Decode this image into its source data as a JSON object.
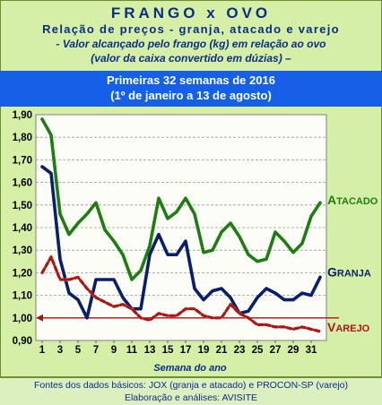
{
  "header": {
    "title": "FRANGO x OVO",
    "subtitle": "Relação de preços - granja, atacado e varejo",
    "note_line1": "- Valor alcançado pelo frango (kg) em relação ao ovo",
    "note_line2": "(valor da caixa convertido em dúzias) –"
  },
  "banner": {
    "line1": "Primeiras  32 semanas de 2016",
    "line2": "(1º de janeiro a 13 de agosto)"
  },
  "footer": {
    "line1": "Fontes dos dados básicos: JOX (granja e atacado) e PROCON-SP (varejo)",
    "line2": "Elaboração e análises: AVISITE"
  },
  "colors": {
    "plot_bg": "#fdfdf7",
    "grid": "#9a9a9a",
    "atacado": "#1e7d12",
    "granja": "#0a1f6b",
    "varejo": "#b01515",
    "reference": "#a01818",
    "label_text": "#0b2d86"
  },
  "chart_data": {
    "type": "line",
    "xlabel": "Semana  do ano",
    "ylabel": "",
    "ylim": [
      0.9,
      1.9
    ],
    "yticks": [
      "0,90",
      "1,00",
      "1,10",
      "1,20",
      "1,30",
      "1,40",
      "1,50",
      "1,60",
      "1,70",
      "1,80",
      "1,90"
    ],
    "ytick_values": [
      0.9,
      1.0,
      1.1,
      1.2,
      1.3,
      1.4,
      1.5,
      1.6,
      1.7,
      1.8,
      1.9
    ],
    "xticks": [
      "1",
      "3",
      "5",
      "7",
      "9",
      "11",
      "13",
      "15",
      "17",
      "19",
      "21",
      "23",
      "25",
      "27",
      "29",
      "31"
    ],
    "xlim": [
      1,
      32
    ],
    "reference_line": 1.0,
    "grid": true,
    "x": [
      1,
      2,
      3,
      4,
      5,
      6,
      7,
      8,
      9,
      10,
      11,
      12,
      13,
      14,
      15,
      16,
      17,
      18,
      19,
      20,
      21,
      22,
      23,
      24,
      25,
      26,
      27,
      28,
      29,
      30,
      31,
      32
    ],
    "series": [
      {
        "name": "Atacado",
        "key": "atacado",
        "label_display": "ATACADO",
        "style": "solid",
        "values": [
          1.88,
          1.81,
          1.46,
          1.37,
          1.42,
          1.46,
          1.51,
          1.39,
          1.34,
          1.28,
          1.17,
          1.21,
          1.32,
          1.53,
          1.44,
          1.47,
          1.53,
          1.46,
          1.29,
          1.3,
          1.38,
          1.42,
          1.36,
          1.28,
          1.25,
          1.26,
          1.38,
          1.34,
          1.29,
          1.33,
          1.45,
          1.51
        ]
      },
      {
        "name": "Granja",
        "key": "granja",
        "label_display": "GRANJA",
        "style": "solid",
        "values": [
          1.67,
          1.64,
          1.26,
          1.11,
          1.08,
          1.0,
          1.17,
          1.17,
          1.17,
          1.09,
          1.04,
          1.04,
          1.28,
          1.37,
          1.28,
          1.28,
          1.34,
          1.13,
          1.08,
          1.12,
          1.13,
          1.09,
          1.02,
          1.03,
          1.09,
          1.13,
          1.11,
          1.08,
          1.08,
          1.11,
          1.1,
          1.18
        ]
      },
      {
        "name": "Varejo",
        "key": "varejo",
        "label_display": "VAREJO",
        "style": "dashed",
        "values": [
          1.2,
          1.27,
          1.17,
          1.17,
          1.18,
          1.13,
          1.09,
          1.07,
          1.05,
          1.06,
          1.04,
          1.0,
          0.99,
          1.02,
          1.01,
          1.01,
          1.04,
          1.04,
          1.01,
          1.0,
          1.0,
          1.06,
          1.02,
          1.0,
          0.97,
          0.97,
          0.96,
          0.96,
          0.95,
          0.96,
          0.95,
          0.94
        ]
      }
    ]
  }
}
